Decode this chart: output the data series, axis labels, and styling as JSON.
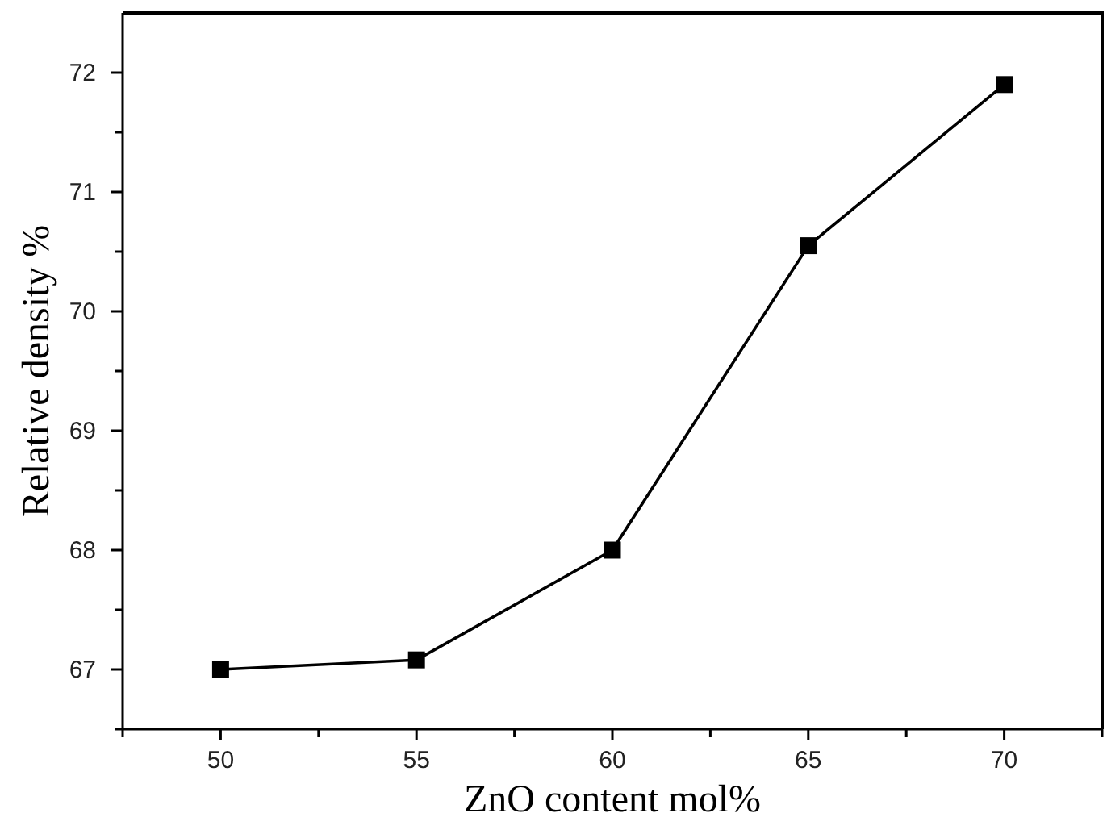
{
  "chart_data": {
    "type": "line",
    "xlabel": "ZnO content mol%",
    "ylabel": "Relative density %",
    "x": [
      50,
      55,
      60,
      65,
      70
    ],
    "series": [
      {
        "color": "#000000",
        "values": [
          67.0,
          67.08,
          68.0,
          70.55,
          71.9
        ]
      }
    ],
    "xlim": [
      47.5,
      72.5
    ],
    "ylim": [
      66.5,
      72.5
    ],
    "xticks": [
      {
        "value": 47.5,
        "label": null
      },
      50,
      {
        "value": 52.5,
        "label": null
      },
      55,
      {
        "value": 57.5,
        "label": null
      },
      60,
      {
        "value": 62.5,
        "label": null
      },
      65,
      {
        "value": 67.5,
        "label": null
      },
      70,
      {
        "value": 72.5,
        "label": null
      }
    ],
    "yticks": [
      {
        "value": 66.5,
        "label": null
      },
      67,
      {
        "value": 67.5,
        "label": null
      },
      68,
      {
        "value": 68.5,
        "label": null
      },
      69,
      {
        "value": 69.5,
        "label": null
      },
      70,
      {
        "value": 70.5,
        "label": null
      },
      71,
      {
        "value": 71.5,
        "label": null
      },
      72
    ],
    "marker": "square",
    "line_style": "solid",
    "grid": false
  }
}
